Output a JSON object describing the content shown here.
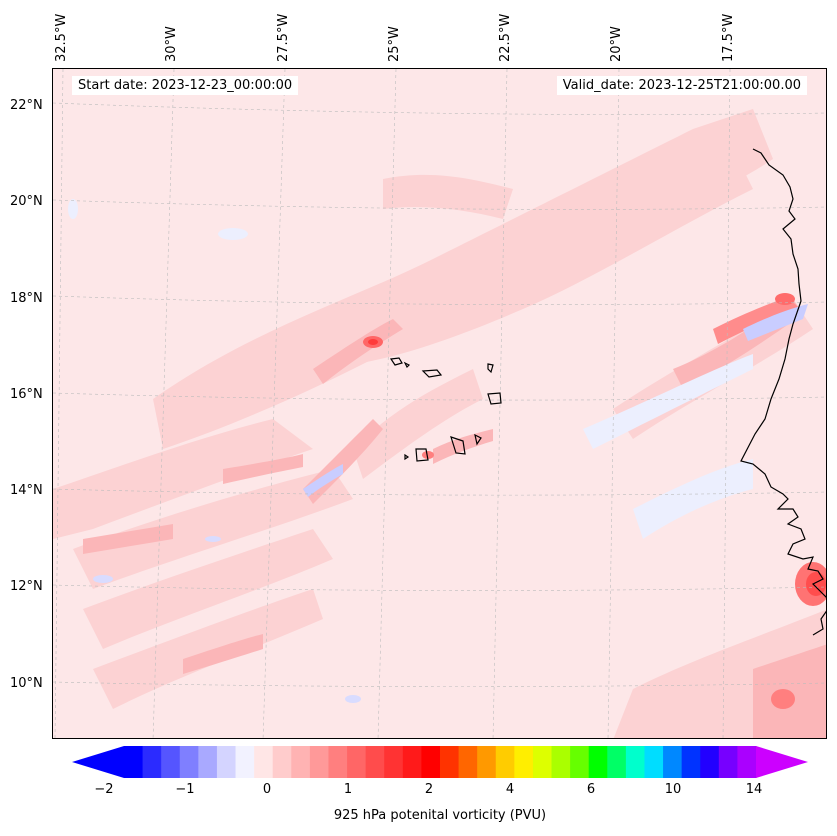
{
  "map": {
    "start_date": "Start date: 2023-12-23_00:00:00",
    "valid_date": "Valid_date: 2023-12-25T21:00:00.00",
    "lon_labels": [
      "32.5°W",
      "30°W",
      "27.5°W",
      "25°W",
      "22.5°W",
      "20°W",
      "17.5°W"
    ],
    "lat_labels": [
      "22°N",
      "20°N",
      "18°N",
      "16°N",
      "14°N",
      "12°N",
      "10°N"
    ],
    "region": "Cabo Verde islands and West African coast",
    "grid": "dashed gray gridlines"
  },
  "colorbar": {
    "label": "925 hPa potenital vorticity (PVU)",
    "ticks": [
      "−2",
      "−1",
      "0",
      "1",
      "2",
      "4",
      "6",
      "10",
      "14"
    ],
    "extend": "both",
    "colors": [
      "#0000ff",
      "#2b2bff",
      "#5555ff",
      "#7f7fff",
      "#a9a9ff",
      "#d4d4ff",
      "#f2f2ff",
      "#ffe6e6",
      "#ffcccc",
      "#ffb3b3",
      "#ff9999",
      "#ff7f7f",
      "#ff6666",
      "#ff4c4c",
      "#ff3333",
      "#ff1a1a",
      "#ff0000",
      "#ff3300",
      "#ff6600",
      "#ff9900",
      "#ffcc00",
      "#ffee00",
      "#ddff00",
      "#aaff00",
      "#66ff00",
      "#00ff00",
      "#00ff66",
      "#00ffcc",
      "#00ddff",
      "#0088ff",
      "#0033ff",
      "#2200ff",
      "#7700ff",
      "#aa00ff"
    ],
    "under_color": "#0000ff",
    "over_color": "#cc00ff"
  }
}
